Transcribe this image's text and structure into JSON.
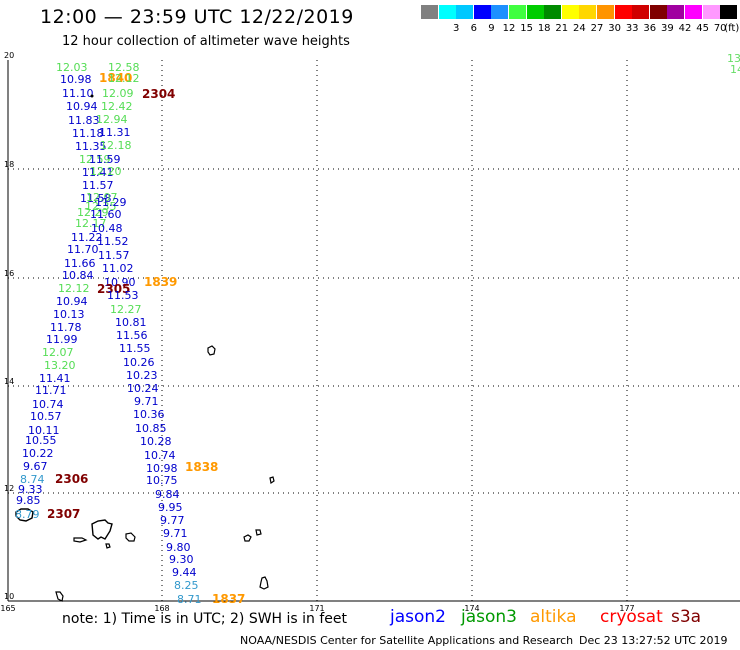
{
  "header": {
    "title": "12:00 — 23:59 UTC 12/22/2019",
    "subtitle": "12 hour collection of altimeter wave heights",
    "legend_unit": "(ft)",
    "legend": [
      {
        "color": "#808080",
        "label": ""
      },
      {
        "color": "#00ffff",
        "label": "3"
      },
      {
        "color": "#00c8ff",
        "label": "6"
      },
      {
        "color": "#0000ff",
        "label": "9"
      },
      {
        "color": "#1e90ff",
        "label": "12"
      },
      {
        "color": "#40ff40",
        "label": "15"
      },
      {
        "color": "#00cd00",
        "label": "18"
      },
      {
        "color": "#008b00",
        "label": "21"
      },
      {
        "color": "#ffff00",
        "label": "24"
      },
      {
        "color": "#ffd700",
        "label": "27"
      },
      {
        "color": "#ff9400",
        "label": "30"
      },
      {
        "color": "#ff0000",
        "label": "33"
      },
      {
        "color": "#d00000",
        "label": "36"
      },
      {
        "color": "#800000",
        "label": "39"
      },
      {
        "color": "#a000a0",
        "label": "42"
      },
      {
        "color": "#ff00ff",
        "label": "45"
      },
      {
        "color": "#ff99ff",
        "label": "70"
      },
      {
        "color": "#000000",
        "label": ""
      }
    ]
  },
  "map": {
    "lon_ticks": [
      "165",
      "168",
      "171",
      "174",
      "177"
    ],
    "lat_ticks": [
      "20",
      "18",
      "16",
      "14",
      "12",
      "10"
    ],
    "edge_labels": [
      {
        "text": "13",
        "color": "#66dd66"
      },
      {
        "text": "14",
        "color": "#66dd66"
      }
    ],
    "observations": [
      {
        "t": "12.03",
        "c": "#55dd55"
      },
      {
        "t": "12.58",
        "c": "#55dd55"
      },
      {
        "t": "10.98",
        "c": "#0000cc"
      },
      {
        "t": "1840",
        "c": "#ff9900"
      },
      {
        "t": "12.12",
        "c": "#55dd55"
      },
      {
        "t": "11.10",
        "c": "#0000cc"
      },
      {
        "t": "12.09",
        "c": "#55dd55"
      },
      {
        "t": "2304",
        "c": "#800000"
      },
      {
        "t": "10.94",
        "c": "#0000cc"
      },
      {
        "t": "12.42",
        "c": "#55dd55"
      },
      {
        "t": "11.83",
        "c": "#0000cc"
      },
      {
        "t": "12.94",
        "c": "#55dd55"
      },
      {
        "t": "11.18",
        "c": "#0000cc"
      },
      {
        "t": "11.31",
        "c": "#0000cc"
      },
      {
        "t": "11.35",
        "c": "#0000cc"
      },
      {
        "t": "12.18",
        "c": "#55dd55"
      },
      {
        "t": "12.59",
        "c": "#55dd55"
      },
      {
        "t": "11.59",
        "c": "#0000cc"
      },
      {
        "t": "11.41",
        "c": "#0000cc"
      },
      {
        "t": "12.20",
        "c": "#55dd55"
      },
      {
        "t": "11.57",
        "c": "#0000cc"
      },
      {
        "t": "11.58",
        "c": "#0000cc"
      },
      {
        "t": "12.07",
        "c": "#55dd55"
      },
      {
        "t": "12.35",
        "c": "#55dd55"
      },
      {
        "t": "11.29",
        "c": "#0000cc"
      },
      {
        "t": "12.29",
        "c": "#55dd55"
      },
      {
        "t": "11.60",
        "c": "#0000cc"
      },
      {
        "t": "12.17",
        "c": "#55dd55"
      },
      {
        "t": "10.48",
        "c": "#0000cc"
      },
      {
        "t": "11.22",
        "c": "#0000cc"
      },
      {
        "t": "11.52",
        "c": "#0000cc"
      },
      {
        "t": "11.70",
        "c": "#0000cc"
      },
      {
        "t": "11.66",
        "c": "#0000cc"
      },
      {
        "t": "11.57",
        "c": "#0000cc"
      },
      {
        "t": "11.02",
        "c": "#0000cc"
      },
      {
        "t": "10.84",
        "c": "#0000cc"
      },
      {
        "t": "10.90",
        "c": "#0000cc"
      },
      {
        "t": "1839",
        "c": "#ff9900"
      },
      {
        "t": "12.12",
        "c": "#55dd55"
      },
      {
        "t": "2305",
        "c": "#800000"
      },
      {
        "t": "11.53",
        "c": "#0000cc"
      },
      {
        "t": "10.94",
        "c": "#0000cc"
      },
      {
        "t": "12.27",
        "c": "#55dd55"
      },
      {
        "t": "10.13",
        "c": "#0000cc"
      },
      {
        "t": "10.81",
        "c": "#0000cc"
      },
      {
        "t": "11.78",
        "c": "#0000cc"
      },
      {
        "t": "11.56",
        "c": "#0000cc"
      },
      {
        "t": "11.99",
        "c": "#0000cc"
      },
      {
        "t": "11.55",
        "c": "#0000cc"
      },
      {
        "t": "12.07",
        "c": "#55dd55"
      },
      {
        "t": "10.26",
        "c": "#0000cc"
      },
      {
        "t": "13.20",
        "c": "#55dd55"
      },
      {
        "t": "10.23",
        "c": "#0000cc"
      },
      {
        "t": "11.41",
        "c": "#0000cc"
      },
      {
        "t": "10.24",
        "c": "#0000cc"
      },
      {
        "t": "11.71",
        "c": "#0000cc"
      },
      {
        "t": "9.71",
        "c": "#0000cc"
      },
      {
        "t": "10.74",
        "c": "#0000cc"
      },
      {
        "t": "10.36",
        "c": "#0000cc"
      },
      {
        "t": "10.57",
        "c": "#0000cc"
      },
      {
        "t": "10.85",
        "c": "#0000cc"
      },
      {
        "t": "10.11",
        "c": "#0000cc"
      },
      {
        "t": "10.28",
        "c": "#0000cc"
      },
      {
        "t": "10.55",
        "c": "#0000cc"
      },
      {
        "t": "10.74",
        "c": "#0000cc"
      },
      {
        "t": "10.22",
        "c": "#0000cc"
      },
      {
        "t": "10.98",
        "c": "#0000cc"
      },
      {
        "t": "1838",
        "c": "#ff9900"
      },
      {
        "t": "9.67",
        "c": "#0000cc"
      },
      {
        "t": "10.75",
        "c": "#0000cc"
      },
      {
        "t": "8.74",
        "c": "#3399cc"
      },
      {
        "t": "2306",
        "c": "#800000"
      },
      {
        "t": "9.33",
        "c": "#0000cc"
      },
      {
        "t": "9.84",
        "c": "#0000cc"
      },
      {
        "t": "9.85",
        "c": "#0000cc"
      },
      {
        "t": "9.95",
        "c": "#0000cc"
      },
      {
        "t": "8.79",
        "c": "#3399cc"
      },
      {
        "t": "2307",
        "c": "#800000"
      },
      {
        "t": "9.77",
        "c": "#0000cc"
      },
      {
        "t": "9.71",
        "c": "#0000cc"
      },
      {
        "t": "9.80",
        "c": "#0000cc"
      },
      {
        "t": "9.30",
        "c": "#0000cc"
      },
      {
        "t": "9.44",
        "c": "#0000cc"
      },
      {
        "t": "8.25",
        "c": "#3399cc"
      },
      {
        "t": "8.71",
        "c": "#3399cc"
      },
      {
        "t": "1837",
        "c": "#ff9900"
      }
    ]
  },
  "footer": {
    "note": "note:  1) Time is in UTC;  2) SWH is in feet",
    "satellites": [
      {
        "name": "jason2",
        "color": "#0000ff"
      },
      {
        "name": "jason3",
        "color": "#009900"
      },
      {
        "name": "altika",
        "color": "#ff9900"
      },
      {
        "name": "cryosat",
        "color": "#ff0000"
      },
      {
        "name": "s3a",
        "color": "#800000"
      }
    ],
    "credit": "NOAA/NESDIS Center for Satellite Applications and Research",
    "timestamp": "Dec 23 13:27:52 UTC 2019"
  }
}
